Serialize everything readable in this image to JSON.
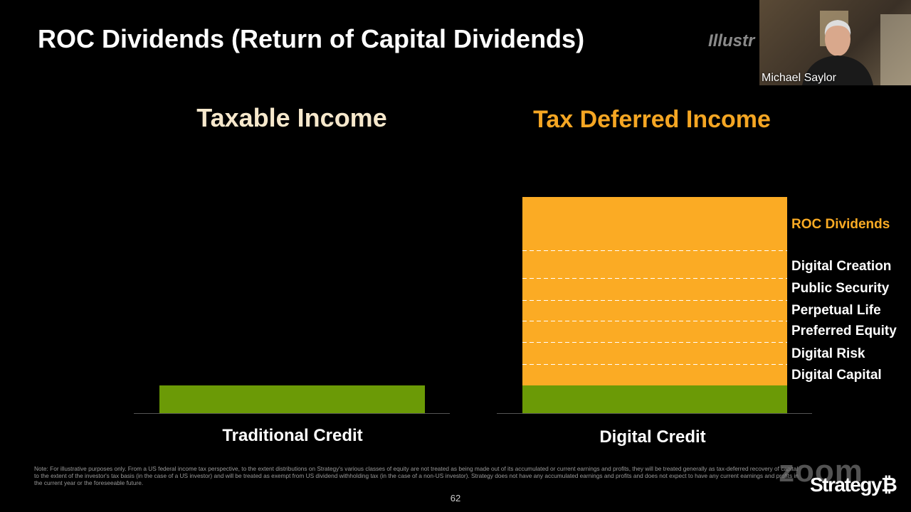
{
  "slide": {
    "title": "ROC Dividends (Return of Capital Dividends)",
    "tag": "Illustr",
    "left": {
      "heading": "Taxable Income",
      "label": "Traditional Credit"
    },
    "right": {
      "heading": "Tax Deferred Income",
      "label": "Digital Credit",
      "layers": [
        "ROC Dividends",
        "Digital Creation",
        "Public Security",
        "Perpetual Life",
        "Preferred Equity",
        "Digital Risk",
        "Digital Capital"
      ]
    },
    "note": "Note: For illustrative purposes only. From a US federal income tax perspective, to the extent distributions on Strategy's various classes of equity are not treated as being made out of its accumulated or current earnings and profits, they will be treated generally as tax-deferred recovery of capital to the extent of the investor's tax basis (in the case of a US investor) and will be treated as exempt from US dividend withholding tax (in the case of a non-US investor). Strategy does not have any accumulated earnings and profits and does not expect to have any current earnings and profits in the current year or the foreseeable future.",
    "page": "62",
    "brand": "Strategy₿"
  },
  "overlay": {
    "app": "zoom",
    "participant": "Michael Saylor"
  }
}
